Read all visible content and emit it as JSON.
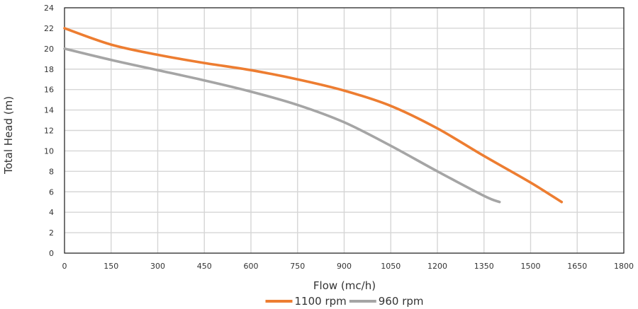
{
  "chart_data": {
    "type": "line",
    "title": "",
    "xlabel": "Flow (mc/h)",
    "ylabel": "Total Head (m)",
    "xlim": [
      0,
      1800
    ],
    "ylim": [
      0,
      24
    ],
    "xticks": [
      0,
      150,
      300,
      450,
      600,
      750,
      900,
      1050,
      1200,
      1350,
      1500,
      1650,
      1800
    ],
    "yticks": [
      0,
      2,
      4,
      6,
      8,
      10,
      12,
      14,
      16,
      18,
      20,
      22,
      24
    ],
    "grid": true,
    "legend_position": "bottom-center",
    "series": [
      {
        "name": "1100 rpm",
        "color": "#ED7D31",
        "x": [
          0,
          150,
          300,
          450,
          600,
          750,
          900,
          1050,
          1200,
          1350,
          1500,
          1600
        ],
        "y": [
          22,
          20.4,
          19.4,
          18.6,
          17.9,
          17.0,
          15.9,
          14.4,
          12.2,
          9.5,
          6.9,
          5.0
        ]
      },
      {
        "name": "960 rpm",
        "color": "#A5A5A5",
        "x": [
          0,
          150,
          300,
          450,
          600,
          750,
          900,
          1050,
          1200,
          1350,
          1400
        ],
        "y": [
          20,
          18.9,
          17.9,
          16.9,
          15.8,
          14.5,
          12.8,
          10.5,
          8.0,
          5.6,
          5.0
        ]
      }
    ]
  }
}
